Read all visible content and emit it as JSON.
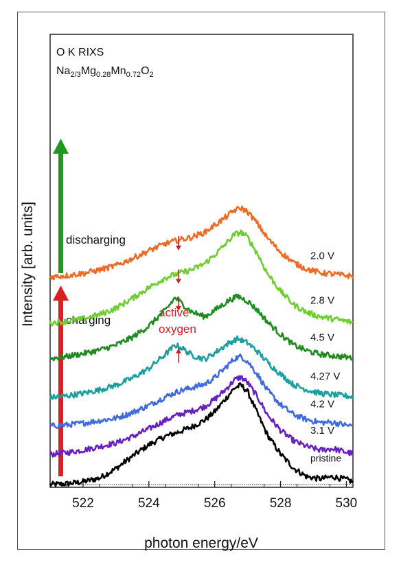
{
  "chart_data": {
    "type": "line",
    "title_line1": "O K RIXS",
    "formula": {
      "p1": "Na",
      "s1": "2/3",
      "p2": "Mg",
      "s2": "0.28",
      "p3": "Mn",
      "s3": "0.72",
      "p4": "O",
      "s4": "2"
    },
    "xlabel": "photon energy/eV",
    "ylabel": "Intensity [arb. units]",
    "xlim": [
      521.0,
      530.2
    ],
    "ylim": [
      0,
      10
    ],
    "x_ticks": [
      "522",
      "524",
      "526",
      "528",
      "530"
    ],
    "x_tick_values": [
      522,
      524,
      526,
      528,
      530
    ],
    "grid": false,
    "series": [
      {
        "name": "pristine",
        "color": "#000000",
        "offset": 0.0,
        "x": [
          521.0,
          521.5,
          522.0,
          522.5,
          523.0,
          523.5,
          524.0,
          524.5,
          524.9,
          525.3,
          525.7,
          526.0,
          526.3,
          526.6,
          526.8,
          527.0,
          527.3,
          527.6,
          528.0,
          528.4,
          528.8,
          529.2,
          529.6,
          530.0,
          530.2
        ],
        "y": [
          0.0,
          0.02,
          0.08,
          0.18,
          0.45,
          0.8,
          1.12,
          1.36,
          1.48,
          1.62,
          1.82,
          2.05,
          2.38,
          2.72,
          2.8,
          2.62,
          2.0,
          1.4,
          0.86,
          0.46,
          0.22,
          0.16,
          0.22,
          0.14,
          0.08
        ]
      },
      {
        "name": "3.1 V",
        "color": "#6a1fc4",
        "offset": 0.85,
        "x": [
          521.0,
          521.5,
          522.0,
          522.5,
          523.0,
          523.5,
          524.0,
          524.5,
          524.9,
          525.3,
          525.7,
          526.0,
          526.3,
          526.6,
          526.8,
          527.0,
          527.3,
          527.6,
          528.0,
          528.4,
          528.8,
          529.2,
          529.6,
          530.0,
          530.2
        ],
        "y": [
          0.0,
          0.05,
          0.12,
          0.22,
          0.32,
          0.5,
          0.72,
          0.96,
          1.12,
          1.22,
          1.35,
          1.55,
          1.8,
          2.1,
          2.18,
          2.02,
          1.62,
          1.12,
          0.68,
          0.38,
          0.22,
          0.12,
          0.16,
          0.06,
          0.02
        ]
      },
      {
        "name": "4.2 V",
        "color": "#3f6be0",
        "offset": 1.65,
        "x": [
          521.0,
          521.5,
          522.0,
          522.5,
          523.0,
          523.5,
          524.0,
          524.5,
          524.9,
          525.3,
          525.7,
          526.0,
          526.3,
          526.6,
          526.8,
          527.0,
          527.3,
          527.6,
          528.0,
          528.4,
          528.8,
          529.2,
          529.6,
          530.0,
          530.2
        ],
        "y": [
          0.0,
          0.03,
          0.08,
          0.15,
          0.22,
          0.38,
          0.58,
          0.82,
          0.98,
          1.08,
          1.18,
          1.36,
          1.62,
          1.9,
          1.96,
          1.82,
          1.45,
          1.0,
          0.6,
          0.32,
          0.18,
          0.1,
          0.1,
          0.02,
          0.0
        ]
      },
      {
        "name": "4.27 V",
        "color": "#1a9e9e",
        "offset": 2.45,
        "x": [
          521.0,
          521.5,
          522.0,
          522.5,
          523.0,
          523.5,
          524.0,
          524.5,
          524.8,
          525.0,
          525.3,
          525.7,
          526.0,
          526.4,
          526.7,
          527.0,
          527.3,
          527.6,
          528.0,
          528.4,
          528.8,
          529.2,
          529.6,
          530.0,
          530.2
        ],
        "y": [
          0.0,
          0.05,
          0.12,
          0.22,
          0.35,
          0.55,
          0.82,
          1.22,
          1.48,
          1.4,
          1.2,
          1.08,
          1.26,
          1.52,
          1.66,
          1.54,
          1.3,
          1.0,
          0.66,
          0.36,
          0.22,
          0.12,
          0.08,
          0.05,
          0.02
        ]
      },
      {
        "name": "4.5 V",
        "color": "#1e8c1e",
        "offset": 3.55,
        "x": [
          521.0,
          521.5,
          522.0,
          522.5,
          523.0,
          523.5,
          524.0,
          524.5,
          524.8,
          525.0,
          525.3,
          525.7,
          526.0,
          526.4,
          526.7,
          527.0,
          527.3,
          527.6,
          528.0,
          528.4,
          528.8,
          529.2,
          529.6,
          530.0,
          530.2
        ],
        "y": [
          0.0,
          0.06,
          0.14,
          0.24,
          0.38,
          0.6,
          0.92,
          1.36,
          1.72,
          1.55,
          1.32,
          1.18,
          1.36,
          1.62,
          1.76,
          1.62,
          1.36,
          1.04,
          0.68,
          0.38,
          0.22,
          0.12,
          0.08,
          0.04,
          0.02
        ]
      },
      {
        "name": "2.8 V",
        "color": "#6ccf2e",
        "offset": 4.55,
        "x": [
          521.0,
          521.5,
          522.0,
          522.5,
          523.0,
          523.5,
          524.0,
          524.5,
          524.9,
          525.3,
          525.7,
          526.0,
          526.3,
          526.6,
          526.8,
          527.0,
          527.3,
          527.6,
          528.0,
          528.4,
          528.8,
          529.2,
          529.6,
          530.0,
          530.2
        ],
        "y": [
          0.0,
          0.05,
          0.12,
          0.24,
          0.42,
          0.7,
          1.0,
          1.28,
          1.4,
          1.5,
          1.68,
          1.92,
          2.2,
          2.5,
          2.56,
          2.42,
          1.95,
          1.4,
          0.9,
          0.52,
          0.3,
          0.18,
          0.12,
          0.05,
          0.02
        ]
      },
      {
        "name": "2.0 V",
        "color": "#f06a22",
        "offset": 5.85,
        "x": [
          521.0,
          521.5,
          522.0,
          522.5,
          523.0,
          523.5,
          524.0,
          524.5,
          524.9,
          525.3,
          525.7,
          526.0,
          526.3,
          526.6,
          526.8,
          527.0,
          527.3,
          527.6,
          528.0,
          528.4,
          528.8,
          529.2,
          529.6,
          530.0,
          530.2
        ],
        "y": [
          0.0,
          0.04,
          0.1,
          0.2,
          0.32,
          0.52,
          0.74,
          0.94,
          1.04,
          1.12,
          1.26,
          1.46,
          1.66,
          1.88,
          1.94,
          1.84,
          1.5,
          1.1,
          0.7,
          0.4,
          0.22,
          0.12,
          0.08,
          0.04,
          0.02
        ]
      }
    ],
    "markers": [
      {
        "x": 524.9,
        "series": "2.0 V",
        "direction": "down",
        "color": "#d41c1c"
      },
      {
        "x": 524.9,
        "series": "2.8 V",
        "direction": "down",
        "color": "#d41c1c"
      },
      {
        "x": 524.9,
        "series": "4.5 V",
        "direction": "down",
        "color": "#d41c1c"
      },
      {
        "x": 524.9,
        "series": "4.27 V",
        "direction": "up",
        "color": "#d41c1c"
      }
    ],
    "annotations": {
      "discharging": "discharging",
      "charging": "charging",
      "active_oxygen_line1": "active",
      "active_oxygen_line2": "oxygen"
    },
    "colors": {
      "charging_arrow": "#dd1f1f",
      "discharging_arrow": "#1e9a1e",
      "active_oxygen_text": "#d41c1c"
    }
  }
}
